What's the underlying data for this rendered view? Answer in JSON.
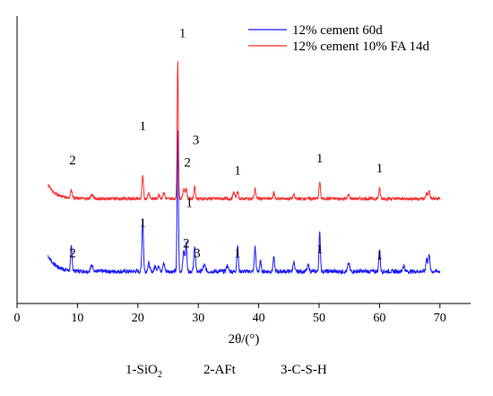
{
  "chart_data": {
    "type": "line",
    "title": "",
    "xlabel": "2θ/(°)",
    "ylabel": "",
    "xlim": [
      0,
      75
    ],
    "x_ticks": [
      0,
      10,
      20,
      30,
      40,
      50,
      60,
      70
    ],
    "grid": false,
    "legend_position": "top-right",
    "series": [
      {
        "name": "12% cement 60d",
        "color": "#1a1aff",
        "baseline": 0.07,
        "start": 5.1,
        "end": 70,
        "head_rise": 0.08,
        "noise": 0.02,
        "peaks": [
          {
            "x": 9.0,
            "h": 0.12,
            "w": 0.12
          },
          {
            "x": 12.4,
            "h": 0.03,
            "w": 0.2
          },
          {
            "x": 20.8,
            "h": 0.26,
            "w": 0.12
          },
          {
            "x": 21.8,
            "h": 0.04,
            "w": 0.15
          },
          {
            "x": 22.9,
            "h": 0.03,
            "w": 0.15
          },
          {
            "x": 23.5,
            "h": 0.03,
            "w": 0.15
          },
          {
            "x": 24.3,
            "h": 0.04,
            "w": 0.15
          },
          {
            "x": 26.6,
            "h": 0.7,
            "w": 0.1
          },
          {
            "x": 27.6,
            "h": 0.1,
            "w": 0.15
          },
          {
            "x": 28.0,
            "h": 0.14,
            "w": 0.12
          },
          {
            "x": 29.4,
            "h": 0.13,
            "w": 0.12
          },
          {
            "x": 31.0,
            "h": 0.03,
            "w": 0.2
          },
          {
            "x": 34.8,
            "h": 0.03,
            "w": 0.15
          },
          {
            "x": 36.5,
            "h": 0.13,
            "w": 0.12
          },
          {
            "x": 39.4,
            "h": 0.12,
            "w": 0.12
          },
          {
            "x": 40.3,
            "h": 0.05,
            "w": 0.12
          },
          {
            "x": 42.5,
            "h": 0.07,
            "w": 0.12
          },
          {
            "x": 45.8,
            "h": 0.05,
            "w": 0.12
          },
          {
            "x": 48.2,
            "h": 0.03,
            "w": 0.15
          },
          {
            "x": 50.1,
            "h": 0.19,
            "w": 0.12
          },
          {
            "x": 54.9,
            "h": 0.04,
            "w": 0.15
          },
          {
            "x": 60.0,
            "h": 0.11,
            "w": 0.12
          },
          {
            "x": 64.0,
            "h": 0.03,
            "w": 0.15
          },
          {
            "x": 67.8,
            "h": 0.07,
            "w": 0.12
          },
          {
            "x": 68.2,
            "h": 0.09,
            "w": 0.12
          }
        ]
      },
      {
        "name": "12% cement 10% FA 14d",
        "color": "#ff2b2b",
        "baseline": 0.43,
        "start": 5.1,
        "end": 70,
        "head_rise": 0.07,
        "noise": 0.015,
        "peaks": [
          {
            "x": 9.0,
            "h": 0.04,
            "w": 0.15
          },
          {
            "x": 12.4,
            "h": 0.02,
            "w": 0.2
          },
          {
            "x": 20.8,
            "h": 0.11,
            "w": 0.12
          },
          {
            "x": 21.8,
            "h": 0.03,
            "w": 0.15
          },
          {
            "x": 23.5,
            "h": 0.02,
            "w": 0.15
          },
          {
            "x": 24.3,
            "h": 0.03,
            "w": 0.15
          },
          {
            "x": 26.6,
            "h": 0.68,
            "w": 0.1
          },
          {
            "x": 27.6,
            "h": 0.05,
            "w": 0.15
          },
          {
            "x": 28.0,
            "h": 0.05,
            "w": 0.12
          },
          {
            "x": 29.4,
            "h": 0.06,
            "w": 0.12
          },
          {
            "x": 35.9,
            "h": 0.03,
            "w": 0.15
          },
          {
            "x": 36.5,
            "h": 0.04,
            "w": 0.12
          },
          {
            "x": 39.4,
            "h": 0.05,
            "w": 0.12
          },
          {
            "x": 42.5,
            "h": 0.03,
            "w": 0.12
          },
          {
            "x": 45.8,
            "h": 0.02,
            "w": 0.12
          },
          {
            "x": 50.1,
            "h": 0.08,
            "w": 0.12
          },
          {
            "x": 54.9,
            "h": 0.02,
            "w": 0.15
          },
          {
            "x": 60.0,
            "h": 0.05,
            "w": 0.12
          },
          {
            "x": 67.8,
            "h": 0.03,
            "w": 0.12
          },
          {
            "x": 68.2,
            "h": 0.04,
            "w": 0.12
          }
        ]
      }
    ],
    "annotations": [
      {
        "text": "1",
        "x": 27.4,
        "y": 1.23
      },
      {
        "text": "1",
        "x": 20.8,
        "y": 0.77
      },
      {
        "text": "3",
        "x": 29.6,
        "y": 0.7
      },
      {
        "text": "2",
        "x": 9.2,
        "y": 0.6
      },
      {
        "text": "2",
        "x": 28.2,
        "y": 0.59
      },
      {
        "text": "1",
        "x": 36.5,
        "y": 0.55
      },
      {
        "text": "1",
        "x": 50.1,
        "y": 0.61
      },
      {
        "text": "1",
        "x": 60.0,
        "y": 0.56
      },
      {
        "text": "1",
        "x": 28.5,
        "y": 0.39
      },
      {
        "text": "1",
        "x": 20.8,
        "y": 0.29
      },
      {
        "text": "2",
        "x": 9.2,
        "y": 0.14
      },
      {
        "text": "2",
        "x": 28.0,
        "y": 0.19
      },
      {
        "text": "3",
        "x": 29.8,
        "y": 0.14
      },
      {
        "text": "1",
        "x": 36.5,
        "y": 0.14
      },
      {
        "text": "1",
        "x": 50.1,
        "y": 0.16
      },
      {
        "text": "1",
        "x": 60.0,
        "y": 0.13
      }
    ]
  },
  "phase_legend": {
    "item1_main": "1-SiO",
    "item1_sub": "2",
    "item2": "2-AFt",
    "item3": "3-C-S-H"
  }
}
